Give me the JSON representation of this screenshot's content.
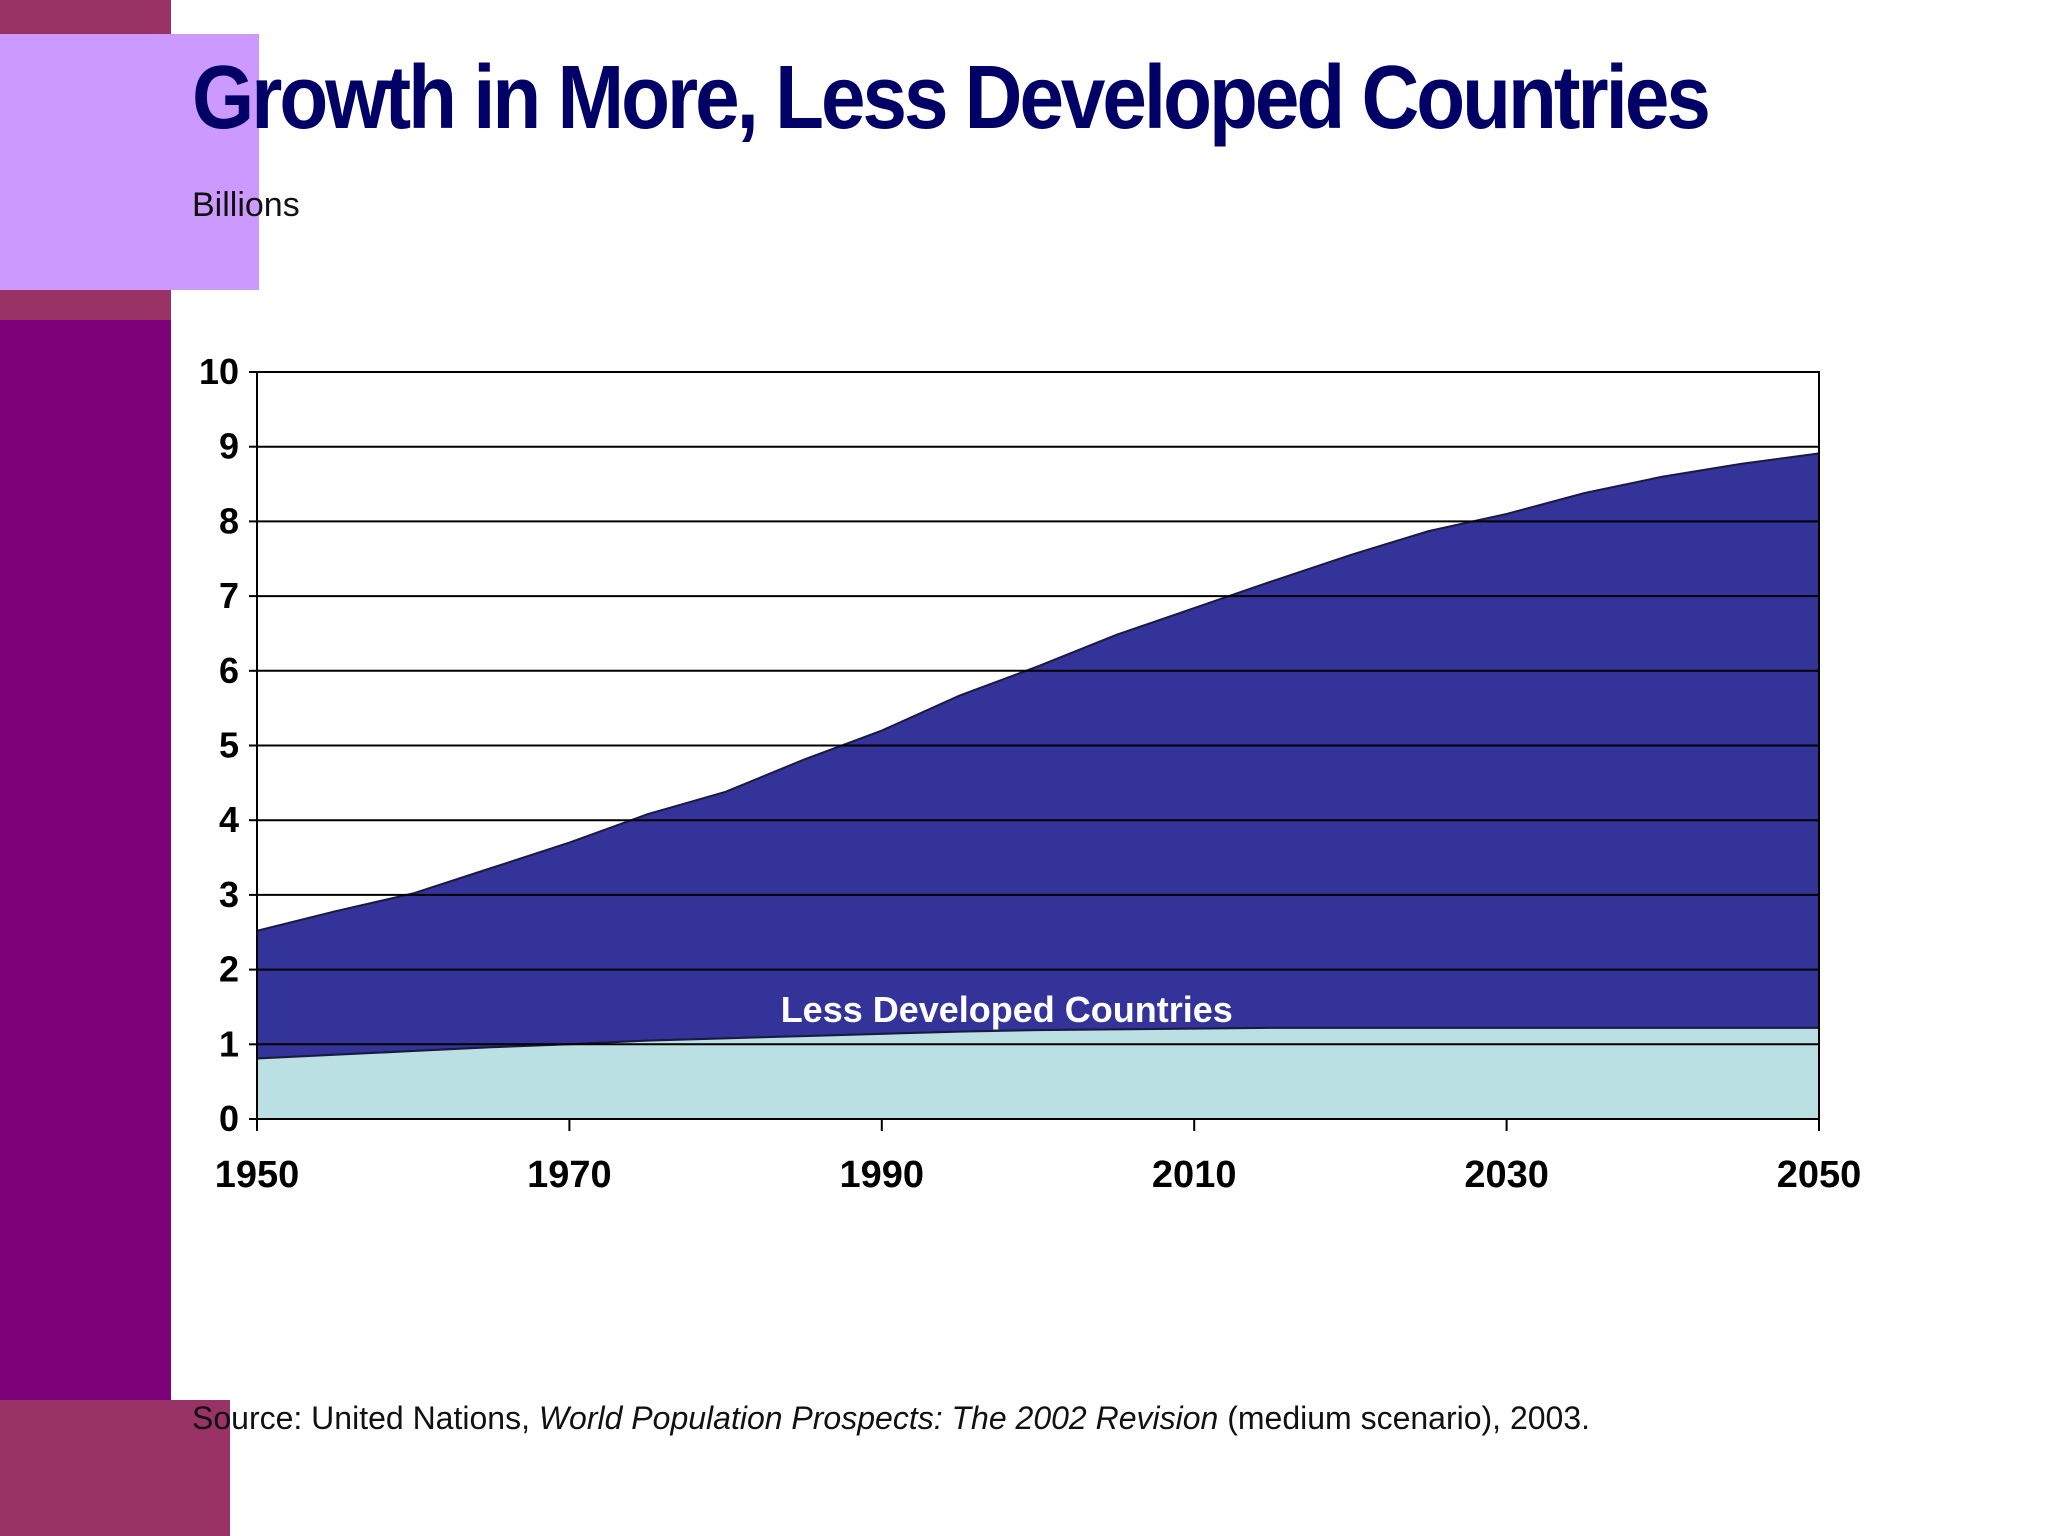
{
  "slide": {
    "title": "Growth in More, Less Developed Countries",
    "unit_label": "Billions",
    "source": {
      "prefix": "Source: United Nations, ",
      "italic": "World Population Prospects: The 2002 Revision",
      "suffix": " (medium scenario), 2003."
    }
  },
  "colors": {
    "left_bar": "#7d0178",
    "accent_block": "#993366",
    "lilac_block": "#cc99ff",
    "title": "#000066",
    "less_developed_fill": "#333399",
    "more_developed_fill": "#bbe0e3"
  },
  "chart_data": {
    "type": "area",
    "title": "Growth in More, Less Developed Countries",
    "ylabel": "Billions",
    "xlabel": "",
    "xlim": [
      1950,
      2050
    ],
    "ylim": [
      0,
      10
    ],
    "x_ticks": [
      1950,
      1970,
      1990,
      2010,
      2030,
      2050
    ],
    "y_ticks": [
      0,
      1,
      2,
      3,
      4,
      5,
      6,
      7,
      8,
      9,
      10
    ],
    "grid": true,
    "stacked": true,
    "x": [
      1950,
      1955,
      1960,
      1965,
      1970,
      1975,
      1980,
      1985,
      1990,
      1995,
      2000,
      2005,
      2010,
      2015,
      2020,
      2025,
      2030,
      2035,
      2040,
      2045,
      2050
    ],
    "series": [
      {
        "name": "",
        "role": "bottom",
        "color": "#bbe0e3",
        "values": [
          0.81,
          0.86,
          0.91,
          0.96,
          1.0,
          1.05,
          1.08,
          1.11,
          1.14,
          1.17,
          1.19,
          1.2,
          1.21,
          1.22,
          1.22,
          1.22,
          1.22,
          1.22,
          1.22,
          1.22,
          1.22
        ]
      },
      {
        "name": "Less Developed Countries",
        "role": "top",
        "color": "#333399",
        "values": [
          1.71,
          1.92,
          2.11,
          2.4,
          2.7,
          3.03,
          3.3,
          3.7,
          4.06,
          4.5,
          4.87,
          5.28,
          5.63,
          5.98,
          6.33,
          6.65,
          6.88,
          7.16,
          7.38,
          7.55,
          7.69
        ]
      }
    ],
    "totals": [
      2.52,
      2.78,
      3.02,
      3.36,
      3.7,
      4.08,
      4.38,
      4.81,
      5.2,
      5.67,
      6.06,
      6.48,
      6.84,
      7.2,
      7.55,
      7.87,
      8.1,
      8.38,
      8.6,
      8.77,
      8.91
    ],
    "annotations": [
      {
        "text": "Less Developed Countries",
        "x": 1998,
        "y": 1.3,
        "color": "#ffffff"
      }
    ]
  }
}
